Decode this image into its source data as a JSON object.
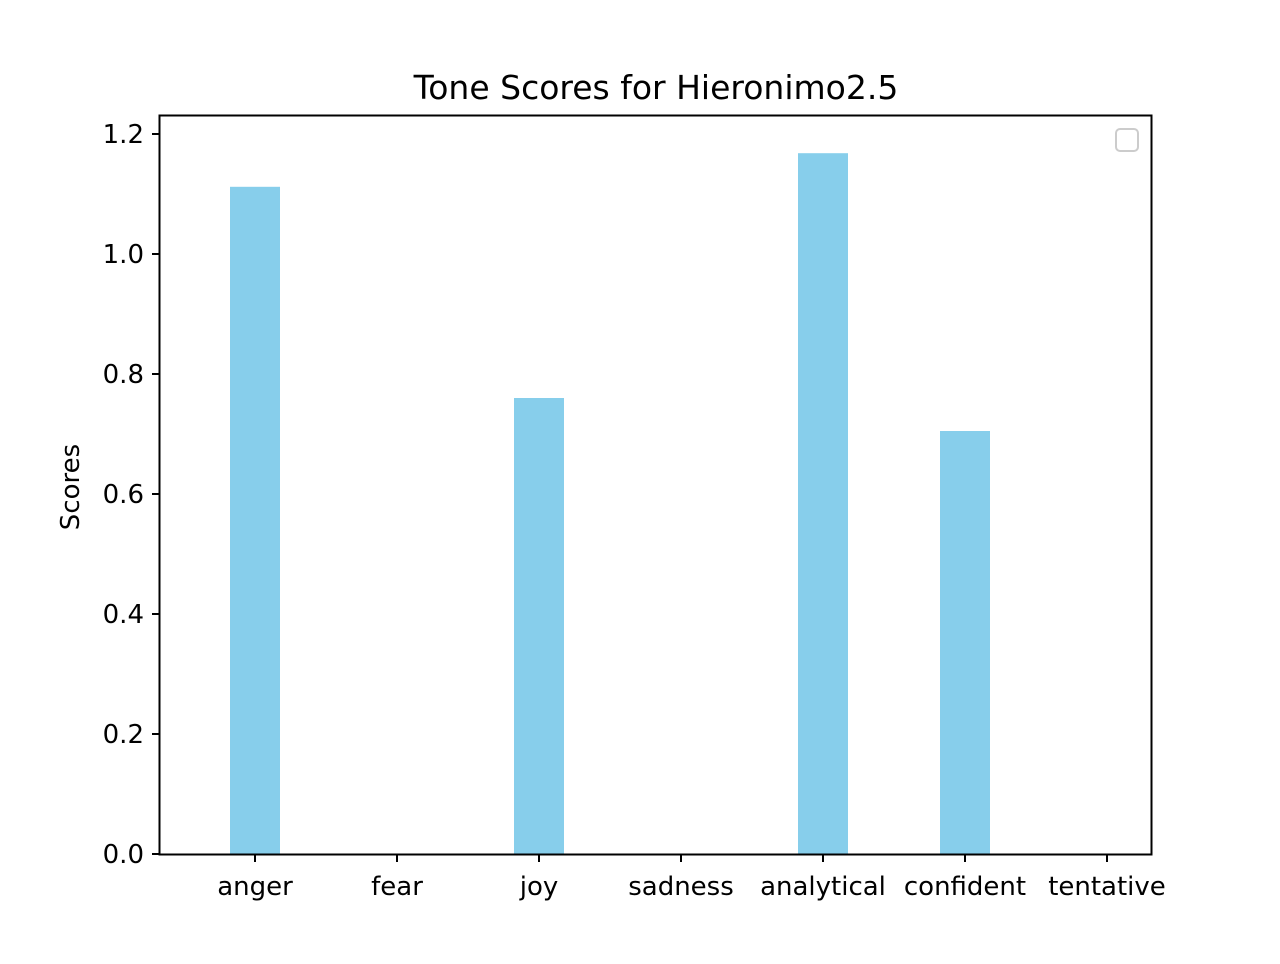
{
  "chart_data": {
    "type": "bar",
    "title": "Tone Scores for Hieronimo2.5",
    "xlabel": "",
    "ylabel": "Scores",
    "categories": [
      "anger",
      "fear",
      "joy",
      "sadness",
      "analytical",
      "confident",
      "tentative"
    ],
    "values": [
      1.112,
      0,
      0.76,
      0,
      1.168,
      0.705,
      0
    ],
    "ylim": [
      0,
      1.23
    ],
    "yticks": [
      "0.0",
      "0.2",
      "0.4",
      "0.6",
      "0.8",
      "1.0",
      "1.2"
    ],
    "ytick_values": [
      0,
      0.2,
      0.4,
      0.6,
      0.8,
      1.0,
      1.2
    ],
    "bar_color": "#87ceeb",
    "grid": false,
    "legend": {
      "placement": "top-right",
      "entries": []
    }
  }
}
